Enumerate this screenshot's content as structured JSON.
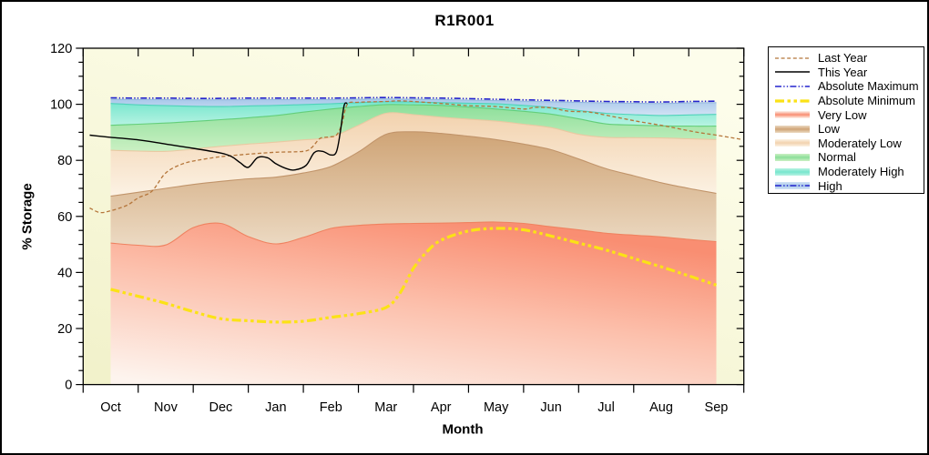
{
  "title": "R1R001",
  "axes": {
    "x_label": "Month",
    "y_label": "% Storage",
    "x_tick_labels": [
      "Oct",
      "Nov",
      "Dec",
      "Jan",
      "Feb",
      "Mar",
      "Apr",
      "May",
      "Jun",
      "Jul",
      "Aug",
      "Sep"
    ],
    "y_tick_labels": [
      "0",
      "20",
      "40",
      "60",
      "80",
      "100",
      "120"
    ]
  },
  "legend": {
    "items": [
      {
        "label": "Last Year",
        "kind": "line",
        "ref": "last_year"
      },
      {
        "label": "This Year",
        "kind": "line",
        "ref": "this_year"
      },
      {
        "label": "Absolute Maximum",
        "kind": "line",
        "ref": "absolute_maximum"
      },
      {
        "label": "Absolute Minimum",
        "kind": "line",
        "ref": "absolute_minimum"
      },
      {
        "label": "Very Low",
        "kind": "band",
        "band": 0
      },
      {
        "label": "Low",
        "kind": "band",
        "band": 1
      },
      {
        "label": "Moderately Low",
        "kind": "band",
        "band": 2
      },
      {
        "label": "Normal",
        "kind": "band",
        "band": 3
      },
      {
        "label": "Moderately High",
        "kind": "band",
        "band": 4
      },
      {
        "label": "High",
        "kind": "band",
        "band": 5,
        "overlay_line": "absolute_maximum"
      }
    ]
  },
  "colors": {
    "figure_border": "#000000",
    "plot_bg_top": "#fdfdeb",
    "plot_bg_bottom": "#f2f2cb",
    "axis": "#000000",
    "lines": {
      "last_year": {
        "color": "#b5763b",
        "width": 1.3,
        "dash": "4 2.6"
      },
      "this_year": {
        "color": "#000000",
        "width": 1.4,
        "dash": ""
      },
      "absolute_maximum": {
        "color": "#2323cd",
        "width": 1.6,
        "dash": "7 2.2 1.4 2.2 1.4 2.2"
      },
      "absolute_minimum": {
        "color": "#fbe216",
        "width": 3.2,
        "dash": "10 3.5 3.5 3.5 3.5 3.5"
      }
    },
    "bands": [
      {
        "name": "Very Low",
        "c_strong": "#f98e72",
        "c_pale": "#fdf4ee",
        "stroke": "#ef8260",
        "grad": "down",
        "diag": true
      },
      {
        "name": "Low",
        "c_strong": "#cfa476",
        "c_pale": "#ecdac3",
        "stroke": "#c1946a",
        "grad": "up"
      },
      {
        "name": "Moderately Low",
        "c_strong": "#f2d2ae",
        "c_pale": "#fcf2e4",
        "stroke": "#e9c9a2",
        "grad": "up"
      },
      {
        "name": "Normal",
        "c_strong": "#8cdf9a",
        "c_pale": "#cbf0c3",
        "stroke": "#63ce7a",
        "grad": "down"
      },
      {
        "name": "Moderately High",
        "c_strong": "#77e6ce",
        "c_pale": "#b8f3e2",
        "stroke": "#4fd2ba",
        "grad": "down"
      },
      {
        "name": "High",
        "c_strong": "#a8c8ea",
        "c_pale": "#d2e2f4",
        "stroke": "#94b8de",
        "grad": "down"
      }
    ]
  },
  "chart_data": {
    "type": "area",
    "title": "R1R001",
    "xlabel": "Month",
    "ylabel": "% Storage",
    "ylim": [
      0,
      120
    ],
    "categories": [
      "Oct",
      "Nov",
      "Dec",
      "Jan",
      "Feb",
      "Mar",
      "Apr",
      "May",
      "Jun",
      "Jul",
      "Aug",
      "Sep"
    ],
    "grid": false,
    "legend_position": "outside-right",
    "bands_note": "stacked percentile zones; values are the TOP boundary of each zone in % storage, sampled every half month from mid-Oct (x=0) to mid-Sep (x=11)",
    "bands": {
      "x_start": 0,
      "x_step": 0.5,
      "series": [
        {
          "name": "Very Low",
          "values": [
            50.5,
            49.7,
            49.8,
            56.0,
            57.5,
            52.8,
            50.2,
            52.5,
            55.7,
            56.8,
            57.3,
            57.5,
            57.6,
            57.8,
            58.0,
            57.5,
            56.3,
            55.2,
            54.0,
            53.3,
            52.7,
            51.8,
            51.0
          ]
        },
        {
          "name": "Low",
          "values": [
            67.2,
            68.6,
            70.0,
            71.4,
            72.5,
            73.4,
            74.0,
            75.5,
            77.8,
            83.0,
            89.3,
            90.2,
            89.6,
            88.6,
            87.4,
            85.8,
            83.8,
            80.5,
            77.0,
            74.5,
            72.0,
            70.0,
            68.2
          ]
        },
        {
          "name": "Moderately Low",
          "values": [
            83.6,
            83.3,
            83.2,
            84.0,
            85.0,
            85.8,
            86.5,
            87.3,
            88.3,
            92.5,
            96.8,
            96.3,
            95.4,
            94.7,
            94.0,
            92.9,
            91.7,
            89.3,
            88.2,
            88.1,
            88.0,
            87.7,
            87.4
          ]
        },
        {
          "name": "Normal",
          "values": [
            92.5,
            92.9,
            93.3,
            93.9,
            94.5,
            95.2,
            96.0,
            97.2,
            98.3,
            99.2,
            99.9,
            99.8,
            99.6,
            99.0,
            98.3,
            97.5,
            96.5,
            94.8,
            93.0,
            92.6,
            92.3,
            92.2,
            92.2
          ]
        },
        {
          "name": "Moderately High",
          "values": [
            100.3,
            99.8,
            99.5,
            99.3,
            99.2,
            99.4,
            99.6,
            99.9,
            100.2,
            100.6,
            100.9,
            100.8,
            100.6,
            100.4,
            100.2,
            99.6,
            98.9,
            97.8,
            96.8,
            96.3,
            96.0,
            96.2,
            96.4
          ]
        },
        {
          "name": "High",
          "values": [
            101.8,
            101.7,
            101.7,
            101.6,
            101.6,
            101.7,
            101.7,
            101.7,
            101.7,
            101.8,
            101.9,
            101.8,
            101.7,
            101.5,
            101.3,
            101.1,
            100.9,
            100.7,
            100.5,
            100.4,
            100.3,
            100.5,
            100.6
          ]
        }
      ]
    },
    "lines": {
      "absolute_maximum": {
        "name": "Absolute Maximum",
        "x": [
          0,
          0.5,
          1,
          1.5,
          2,
          2.5,
          3,
          3.5,
          4,
          4.5,
          5,
          5.5,
          6,
          6.5,
          7,
          7.5,
          8,
          8.5,
          9,
          9.5,
          10,
          10.5,
          11
        ],
        "y": [
          102.3,
          102.2,
          102.2,
          102.1,
          102.1,
          102.2,
          102.2,
          102.2,
          102.2,
          102.3,
          102.4,
          102.3,
          102.2,
          102.0,
          101.8,
          101.6,
          101.4,
          101.2,
          101.0,
          100.9,
          100.8,
          101.0,
          101.1
        ]
      },
      "absolute_minimum": {
        "name": "Absolute Minimum",
        "x": [
          0,
          0.5,
          1,
          1.5,
          2,
          2.5,
          3,
          3.5,
          4,
          4.5,
          5,
          5.25,
          5.5,
          5.75,
          6,
          6.5,
          7,
          7.5,
          8,
          8.5,
          9,
          9.5,
          10,
          10.5,
          11
        ],
        "y": [
          34.0,
          31.5,
          29.0,
          26.0,
          23.5,
          22.8,
          22.3,
          22.6,
          24.0,
          25.3,
          27.5,
          32.5,
          41.5,
          47.5,
          51.5,
          54.8,
          55.7,
          55.2,
          53.0,
          50.5,
          48.0,
          45.0,
          42.0,
          38.8,
          35.5
        ]
      },
      "this_year": {
        "name": "This Year",
        "x": [
          -0.38,
          -0.2,
          0,
          0.5,
          1,
          1.5,
          2,
          2.2,
          2.35,
          2.5,
          2.67,
          2.85,
          3.0,
          3.2,
          3.35,
          3.55,
          3.7,
          3.85,
          4.0,
          4.1,
          4.17,
          4.24,
          4.3
        ],
        "y": [
          89.0,
          88.6,
          88.2,
          87.3,
          85.8,
          84.3,
          82.6,
          81.3,
          79.2,
          77.5,
          81.0,
          80.9,
          78.8,
          77.0,
          76.6,
          78.2,
          82.8,
          83.2,
          81.9,
          83.0,
          90.0,
          99.5,
          100.3
        ]
      },
      "last_year": {
        "name": "Last Year",
        "x": [
          -0.38,
          -0.2,
          0,
          0.3,
          0.5,
          0.75,
          1.0,
          1.3,
          1.6,
          2.0,
          2.5,
          3.0,
          3.5,
          3.65,
          3.8,
          3.95,
          4.1,
          4.2,
          4.3,
          4.5,
          5.0,
          5.3,
          6.0,
          6.5,
          7.0,
          7.5,
          7.7,
          8.0,
          8.3,
          8.7,
          9.0,
          9.6,
          10.0,
          10.6,
          11.0,
          11.45
        ],
        "y": [
          63.0,
          61.4,
          62.0,
          64.0,
          66.6,
          69.0,
          75.5,
          78.7,
          80.1,
          81.3,
          82.2,
          82.9,
          83.2,
          84.5,
          87.8,
          88.3,
          89.0,
          93.0,
          100.0,
          100.7,
          101.0,
          101.2,
          100.3,
          99.5,
          99.2,
          98.3,
          98.9,
          98.7,
          97.6,
          97.2,
          96.1,
          93.8,
          92.5,
          90.2,
          89.0,
          87.5
        ]
      }
    }
  }
}
